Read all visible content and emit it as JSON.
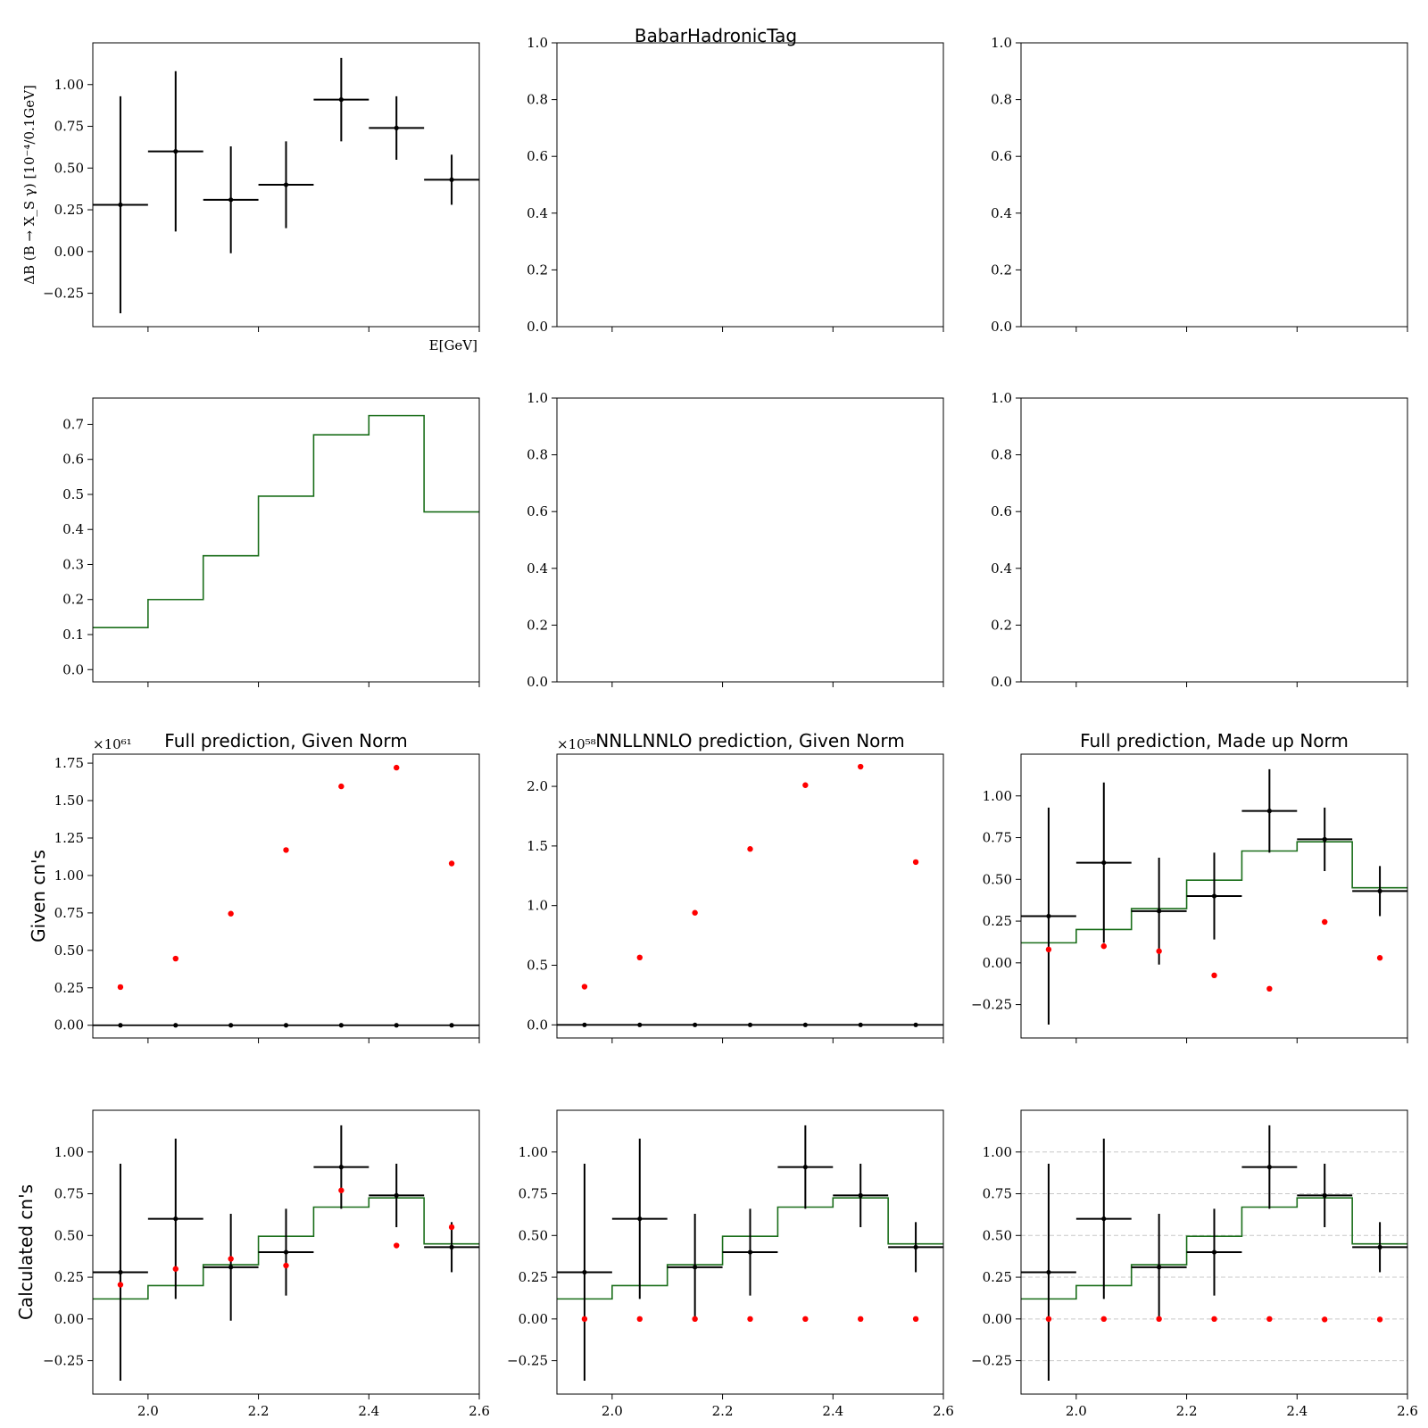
{
  "figure": {
    "suptitle": "BabarHadronicTag",
    "colors": {
      "data": "#000000",
      "prediction": "#1a6e1a",
      "points": "#ff0000",
      "grid": "#c8c8c8"
    }
  },
  "chart_data": [
    {
      "type": "errorbar",
      "title": "",
      "ylabel": "ΔB (B → X_S γ) [10⁻⁴/0.1GeV]",
      "xlabel": "E[GeV]",
      "xlim": [
        1.9,
        2.6
      ],
      "ylim": [
        -0.45,
        1.25
      ],
      "xticks": [
        2.0,
        2.2,
        2.4,
        2.6
      ],
      "xtick_labels": [
        "",
        "",
        "",
        ""
      ],
      "yticks": [
        -0.25,
        0.0,
        0.25,
        0.5,
        0.75,
        1.0
      ],
      "ytick_labels": [
        "−0.25",
        "0.00",
        "0.25",
        "0.50",
        "0.75",
        "1.00"
      ],
      "data": {
        "x": [
          1.95,
          2.05,
          2.15,
          2.25,
          2.35,
          2.45,
          2.55
        ],
        "xerr": 0.05,
        "y": [
          0.28,
          0.6,
          0.31,
          0.4,
          0.91,
          0.74,
          0.43
        ],
        "yerr_low": [
          0.65,
          0.48,
          0.32,
          0.26,
          0.25,
          0.19,
          0.15
        ],
        "yerr_high": [
          0.65,
          0.48,
          0.32,
          0.26,
          0.25,
          0.19,
          0.15
        ]
      }
    },
    {
      "type": "empty",
      "title": "",
      "xlim": [
        1.9,
        2.6
      ],
      "ylim": [
        0,
        1
      ],
      "xticks": [
        2.0,
        2.2,
        2.4,
        2.6
      ],
      "xtick_labels": [
        "",
        "",
        "",
        ""
      ],
      "yticks": [
        0,
        0.2,
        0.4,
        0.6,
        0.8,
        1.0
      ],
      "ytick_labels": [
        "0.0",
        "0.2",
        "0.4",
        "0.6",
        "0.8",
        "1.0"
      ]
    },
    {
      "type": "empty",
      "title": "",
      "xlim": [
        1.9,
        2.6
      ],
      "ylim": [
        0,
        1
      ],
      "xticks": [
        2.0,
        2.2,
        2.4,
        2.6
      ],
      "xtick_labels": [
        "",
        "",
        "",
        ""
      ],
      "yticks": [
        0,
        0.2,
        0.4,
        0.6,
        0.8,
        1.0
      ],
      "ytick_labels": [
        "0.0",
        "0.2",
        "0.4",
        "0.6",
        "0.8",
        "1.0"
      ]
    },
    {
      "type": "step",
      "title": "",
      "xlim": [
        1.9,
        2.6
      ],
      "ylim": [
        -0.035,
        0.775
      ],
      "xticks": [
        2.0,
        2.2,
        2.4,
        2.6
      ],
      "xtick_labels": [
        "",
        "",
        "",
        ""
      ],
      "yticks": [
        0,
        0.1,
        0.2,
        0.3,
        0.4,
        0.5,
        0.6,
        0.7
      ],
      "ytick_labels": [
        "0.0",
        "0.1",
        "0.2",
        "0.3",
        "0.4",
        "0.5",
        "0.6",
        "0.7"
      ],
      "step": {
        "edges": [
          1.9,
          2.0,
          2.1,
          2.2,
          2.3,
          2.4,
          2.5,
          2.6
        ],
        "values": [
          0.12,
          0.2,
          0.325,
          0.495,
          0.67,
          0.725,
          0.45
        ]
      }
    },
    {
      "type": "empty",
      "title": "",
      "xlim": [
        1.9,
        2.6
      ],
      "ylim": [
        0,
        1
      ],
      "xticks": [
        2.0,
        2.2,
        2.4,
        2.6
      ],
      "xtick_labels": [
        "",
        "",
        "",
        ""
      ],
      "yticks": [
        0,
        0.2,
        0.4,
        0.6,
        0.8,
        1.0
      ],
      "ytick_labels": [
        "0.0",
        "0.2",
        "0.4",
        "0.6",
        "0.8",
        "1.0"
      ]
    },
    {
      "type": "empty",
      "title": "",
      "xlim": [
        1.9,
        2.6
      ],
      "ylim": [
        0,
        1
      ],
      "xticks": [
        2.0,
        2.2,
        2.4,
        2.6
      ],
      "xtick_labels": [
        "",
        "",
        "",
        ""
      ],
      "yticks": [
        0,
        0.2,
        0.4,
        0.6,
        0.8,
        1.0
      ],
      "ytick_labels": [
        "0.0",
        "0.2",
        "0.4",
        "0.6",
        "0.8",
        "1.0"
      ]
    },
    {
      "type": "errorbar+scatter",
      "title": "Full prediction, Given Norm",
      "ylabel": "Given cn's",
      "offset_text": "×10⁶¹",
      "xlim": [
        1.9,
        2.6
      ],
      "ylim": [
        -0.085,
        1.81
      ],
      "xticks": [
        2.0,
        2.2,
        2.4,
        2.6
      ],
      "xtick_labels": [
        "",
        "",
        "",
        ""
      ],
      "yticks": [
        0,
        0.25,
        0.5,
        0.75,
        1.0,
        1.25,
        1.5,
        1.75
      ],
      "ytick_labels": [
        "0.00",
        "0.25",
        "0.50",
        "0.75",
        "1.00",
        "1.25",
        "1.50",
        "1.75"
      ],
      "hline": 0,
      "data": {
        "x": [
          1.95,
          2.05,
          2.15,
          2.25,
          2.35,
          2.45,
          2.55
        ],
        "y": [
          0,
          0,
          0,
          0,
          0,
          0,
          0
        ]
      },
      "points": {
        "x": [
          1.95,
          2.05,
          2.15,
          2.25,
          2.35,
          2.45,
          2.55
        ],
        "y": [
          0.255,
          0.445,
          0.745,
          1.17,
          1.595,
          1.72,
          1.08
        ]
      }
    },
    {
      "type": "errorbar+scatter",
      "title": "NNLLNNLO prediction, Given Norm",
      "offset_text": "×10⁵⁸",
      "xlim": [
        1.9,
        2.6
      ],
      "ylim": [
        -0.11,
        2.27
      ],
      "xticks": [
        2.0,
        2.2,
        2.4,
        2.6
      ],
      "xtick_labels": [
        "",
        "",
        "",
        ""
      ],
      "yticks": [
        0,
        0.5,
        1.0,
        1.5,
        2.0
      ],
      "ytick_labels": [
        "0.0",
        "0.5",
        "1.0",
        "1.5",
        "2.0"
      ],
      "hline": 0,
      "data": {
        "x": [
          1.95,
          2.05,
          2.15,
          2.25,
          2.35,
          2.45,
          2.55
        ],
        "y": [
          0,
          0,
          0,
          0,
          0,
          0,
          0
        ]
      },
      "points": {
        "x": [
          1.95,
          2.05,
          2.15,
          2.25,
          2.35,
          2.45,
          2.55
        ],
        "y": [
          0.32,
          0.565,
          0.94,
          1.475,
          2.01,
          2.165,
          1.365
        ]
      }
    },
    {
      "type": "errorbar+step+scatter",
      "title": "Full prediction, Made up Norm",
      "xlim": [
        1.9,
        2.6
      ],
      "ylim": [
        -0.45,
        1.25
      ],
      "xticks": [
        2.0,
        2.2,
        2.4,
        2.6
      ],
      "xtick_labels": [
        "",
        "",
        "",
        ""
      ],
      "yticks": [
        -0.25,
        0.0,
        0.25,
        0.5,
        0.75,
        1.0
      ],
      "ytick_labels": [
        "−0.25",
        "0.00",
        "0.25",
        "0.50",
        "0.75",
        "1.00"
      ],
      "data": {
        "x": [
          1.95,
          2.05,
          2.15,
          2.25,
          2.35,
          2.45,
          2.55
        ],
        "xerr": 0.05,
        "y": [
          0.28,
          0.6,
          0.31,
          0.4,
          0.91,
          0.74,
          0.43
        ],
        "yerr_low": [
          0.65,
          0.48,
          0.32,
          0.26,
          0.25,
          0.19,
          0.15
        ],
        "yerr_high": [
          0.65,
          0.48,
          0.32,
          0.26,
          0.25,
          0.19,
          0.15
        ]
      },
      "step": {
        "edges": [
          1.9,
          2.0,
          2.1,
          2.2,
          2.3,
          2.4,
          2.5,
          2.6
        ],
        "values": [
          0.12,
          0.2,
          0.325,
          0.495,
          0.67,
          0.725,
          0.45
        ]
      },
      "points": {
        "x": [
          1.95,
          2.05,
          2.15,
          2.25,
          2.35,
          2.45,
          2.55
        ],
        "y": [
          0.08,
          0.1,
          0.07,
          -0.075,
          -0.155,
          0.245,
          0.03
        ]
      }
    },
    {
      "type": "errorbar+step+scatter",
      "title": "",
      "ylabel": "Calculated cn's",
      "xlim": [
        1.9,
        2.6
      ],
      "ylim": [
        -0.45,
        1.25
      ],
      "xticks": [
        2.0,
        2.2,
        2.4,
        2.6
      ],
      "xtick_labels": [
        "2.0",
        "2.2",
        "2.4",
        "2.6"
      ],
      "yticks": [
        -0.25,
        0.0,
        0.25,
        0.5,
        0.75,
        1.0
      ],
      "ytick_labels": [
        "−0.25",
        "0.00",
        "0.25",
        "0.50",
        "0.75",
        "1.00"
      ],
      "data": {
        "x": [
          1.95,
          2.05,
          2.15,
          2.25,
          2.35,
          2.45,
          2.55
        ],
        "xerr": 0.05,
        "y": [
          0.28,
          0.6,
          0.31,
          0.4,
          0.91,
          0.74,
          0.43
        ],
        "yerr_low": [
          0.65,
          0.48,
          0.32,
          0.26,
          0.25,
          0.19,
          0.15
        ],
        "yerr_high": [
          0.65,
          0.48,
          0.32,
          0.26,
          0.25,
          0.19,
          0.15
        ]
      },
      "step": {
        "edges": [
          1.9,
          2.0,
          2.1,
          2.2,
          2.3,
          2.4,
          2.5,
          2.6
        ],
        "values": [
          0.12,
          0.2,
          0.325,
          0.495,
          0.67,
          0.725,
          0.45
        ]
      },
      "points": {
        "x": [
          1.95,
          2.05,
          2.15,
          2.25,
          2.35,
          2.45,
          2.55
        ],
        "y": [
          0.205,
          0.3,
          0.36,
          0.32,
          0.77,
          0.44,
          0.55
        ]
      }
    },
    {
      "type": "errorbar+step+scatter",
      "title": "",
      "xlim": [
        1.9,
        2.6
      ],
      "ylim": [
        -0.45,
        1.25
      ],
      "xticks": [
        2.0,
        2.2,
        2.4,
        2.6
      ],
      "xtick_labels": [
        "2.0",
        "2.2",
        "2.4",
        "2.6"
      ],
      "yticks": [
        -0.25,
        0.0,
        0.25,
        0.5,
        0.75,
        1.0
      ],
      "ytick_labels": [
        "−0.25",
        "0.00",
        "0.25",
        "0.50",
        "0.75",
        "1.00"
      ],
      "data": {
        "x": [
          1.95,
          2.05,
          2.15,
          2.25,
          2.35,
          2.45,
          2.55
        ],
        "xerr": 0.05,
        "y": [
          0.28,
          0.6,
          0.31,
          0.4,
          0.91,
          0.74,
          0.43
        ],
        "yerr_low": [
          0.65,
          0.48,
          0.32,
          0.26,
          0.25,
          0.19,
          0.15
        ],
        "yerr_high": [
          0.65,
          0.48,
          0.32,
          0.26,
          0.25,
          0.19,
          0.15
        ]
      },
      "step": {
        "edges": [
          1.9,
          2.0,
          2.1,
          2.2,
          2.3,
          2.4,
          2.5,
          2.6
        ],
        "values": [
          0.12,
          0.2,
          0.325,
          0.495,
          0.67,
          0.725,
          0.45
        ]
      },
      "points": {
        "x": [
          1.95,
          2.05,
          2.15,
          2.25,
          2.35,
          2.45,
          2.55
        ],
        "y": [
          0,
          0,
          0,
          0,
          0,
          0,
          0
        ]
      }
    },
    {
      "type": "errorbar+step+scatter",
      "title": "",
      "grid": true,
      "xlim": [
        1.9,
        2.6
      ],
      "ylim": [
        -0.45,
        1.25
      ],
      "xticks": [
        2.0,
        2.2,
        2.4,
        2.6
      ],
      "xtick_labels": [
        "2.0",
        "2.2",
        "2.4",
        "2.6"
      ],
      "yticks": [
        -0.25,
        0.0,
        0.25,
        0.5,
        0.75,
        1.0
      ],
      "ytick_labels": [
        "−0.25",
        "0.00",
        "0.25",
        "0.50",
        "0.75",
        "1.00"
      ],
      "data": {
        "x": [
          1.95,
          2.05,
          2.15,
          2.25,
          2.35,
          2.45,
          2.55
        ],
        "xerr": 0.05,
        "y": [
          0.28,
          0.6,
          0.31,
          0.4,
          0.91,
          0.74,
          0.43
        ],
        "yerr_low": [
          0.65,
          0.48,
          0.32,
          0.26,
          0.25,
          0.19,
          0.15
        ],
        "yerr_high": [
          0.65,
          0.48,
          0.32,
          0.26,
          0.25,
          0.19,
          0.15
        ]
      },
      "step": {
        "edges": [
          1.9,
          2.0,
          2.1,
          2.2,
          2.3,
          2.4,
          2.5,
          2.6
        ],
        "values": [
          0.12,
          0.2,
          0.325,
          0.495,
          0.67,
          0.725,
          0.45
        ]
      },
      "points": {
        "x": [
          1.95,
          2.05,
          2.15,
          2.25,
          2.35,
          2.45,
          2.55
        ],
        "y": [
          0,
          0,
          0,
          0,
          0,
          -0.003,
          -0.003
        ]
      }
    }
  ]
}
